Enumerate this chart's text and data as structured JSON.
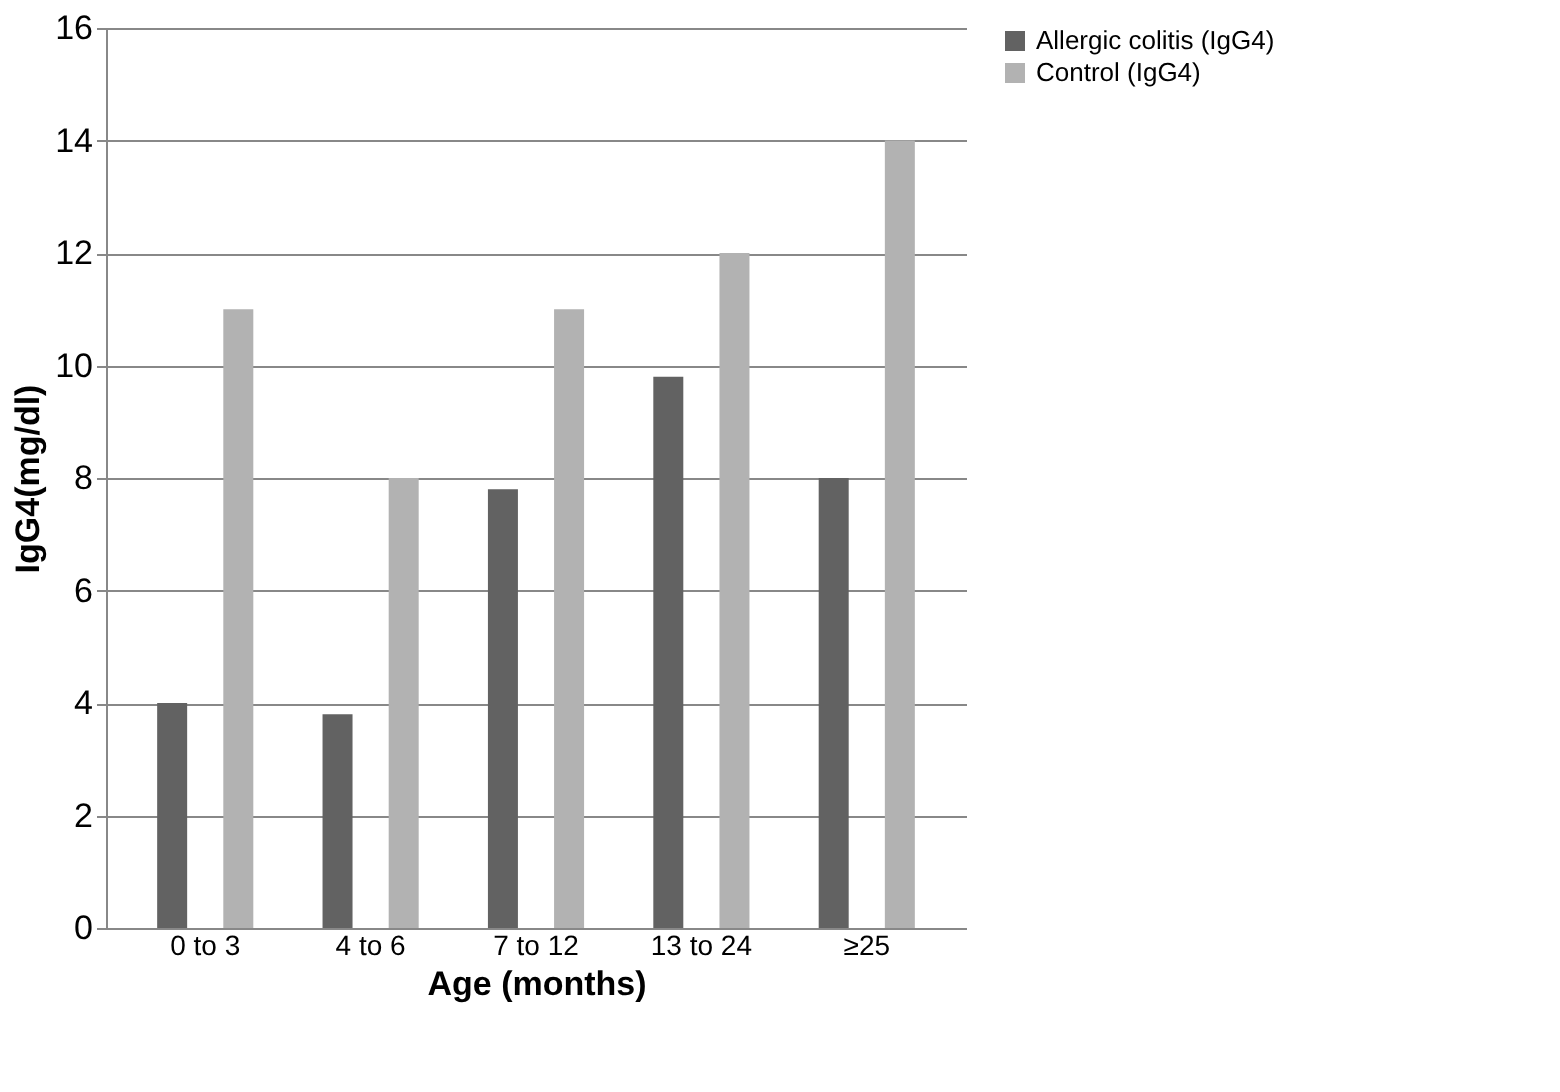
{
  "chart_data": {
    "type": "bar",
    "xlabel": "Age (months)",
    "ylabel": "IgG4(mg/dl)",
    "categories": [
      "0 to 3",
      "4 to 6",
      "7 to 12",
      "13 to 24",
      "≥25"
    ],
    "series": [
      {
        "name": "Allergic colitis (IgG4)",
        "color": "#626262",
        "values": [
          4,
          3.8,
          7.8,
          9.8,
          8
        ]
      },
      {
        "name": "Control (IgG4)",
        "color": "#b2b2b2",
        "values": [
          11,
          8,
          11,
          12,
          14
        ]
      }
    ],
    "ylim": [
      0,
      16
    ],
    "yticks": [
      0,
      2,
      4,
      6,
      8,
      10,
      12,
      14,
      16
    ],
    "grid": "y",
    "legend": "right"
  }
}
